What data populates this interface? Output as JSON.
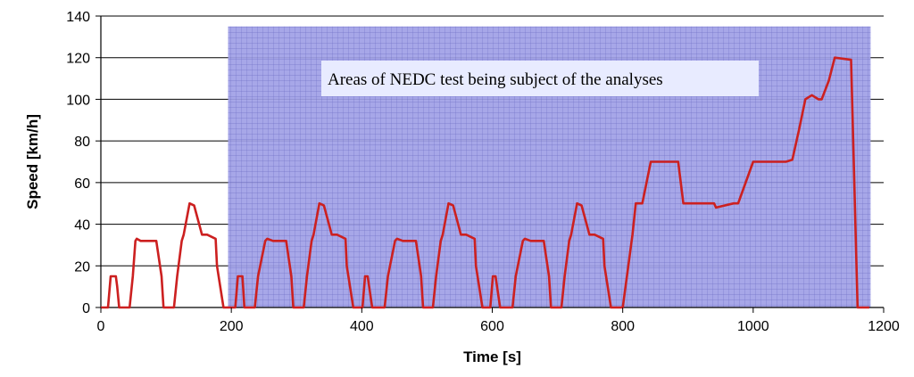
{
  "chart_data": {
    "type": "line",
    "title": "",
    "xlabel": "Time [s]",
    "ylabel": "Speed   [km/h]",
    "xlim": [
      0,
      1200
    ],
    "ylim": [
      0,
      140
    ],
    "x_ticks": [
      "0",
      "200",
      "400",
      "600",
      "800",
      "1000",
      "1200"
    ],
    "y_ticks": [
      "0",
      "20",
      "40",
      "60",
      "80",
      "100",
      "120",
      "140"
    ],
    "grid": "horizontal",
    "legend": "none",
    "line_color": "#cc2020",
    "highlight": {
      "x_range": [
        195,
        1180
      ],
      "y_top": 135,
      "color": "#9fa0e6",
      "grid_color": "#4a4ab0",
      "label": "Areas of NEDC test being subject of the analyses"
    },
    "series": [
      {
        "x": [
          0,
          11,
          15,
          23,
          25,
          28,
          44,
          49,
          53,
          55,
          61,
          85,
          93,
          96,
          112,
          117,
          124,
          127,
          136,
          143,
          155,
          163,
          176,
          178,
          188,
          195,
          206,
          210,
          217,
          220,
          236,
          241,
          252,
          255,
          264,
          284,
          292,
          295,
          311,
          316,
          323,
          326,
          335,
          342,
          354,
          362,
          375,
          377,
          387,
          401,
          405,
          409,
          416,
          419,
          435,
          440,
          451,
          454,
          463,
          483,
          491,
          494,
          509,
          514,
          521,
          524,
          533,
          540,
          552,
          560,
          573,
          575,
          585,
          597,
          601,
          605,
          612,
          615,
          631,
          636,
          647,
          650,
          659,
          679,
          687,
          690,
          706,
          711,
          718,
          721,
          730,
          737,
          749,
          757,
          770,
          772,
          782,
          800,
          815,
          820,
          830,
          843,
          850,
          861,
          885,
          893,
          901,
          918,
          940,
          943,
          970,
          977,
          1000,
          1030,
          1050,
          1060,
          1070,
          1080,
          1090,
          1100,
          1105,
          1116,
          1125,
          1150,
          1160,
          1168,
          1178
        ],
        "y": [
          0,
          0,
          15,
          15,
          10,
          0,
          0,
          15,
          32,
          33,
          32,
          32,
          15,
          0,
          0,
          15,
          32,
          35,
          50,
          49,
          35,
          35,
          33,
          20,
          0,
          0,
          0,
          15,
          15,
          0,
          0,
          15,
          32,
          33,
          32,
          32,
          15,
          0,
          0,
          15,
          32,
          35,
          50,
          49,
          35,
          35,
          33,
          20,
          0,
          0,
          15,
          15,
          0,
          0,
          0,
          15,
          32,
          33,
          32,
          32,
          15,
          0,
          0,
          15,
          32,
          35,
          50,
          49,
          35,
          35,
          33,
          20,
          0,
          0,
          15,
          15,
          0,
          0,
          0,
          15,
          32,
          33,
          32,
          32,
          15,
          0,
          0,
          15,
          32,
          35,
          50,
          49,
          35,
          35,
          33,
          20,
          0,
          0,
          35,
          50,
          50,
          70,
          70,
          70,
          70,
          50,
          50,
          50,
          50,
          48,
          50,
          50,
          70,
          70,
          70,
          71,
          85,
          100,
          102,
          100,
          100,
          109,
          120,
          119,
          0,
          0,
          0
        ]
      }
    ]
  }
}
